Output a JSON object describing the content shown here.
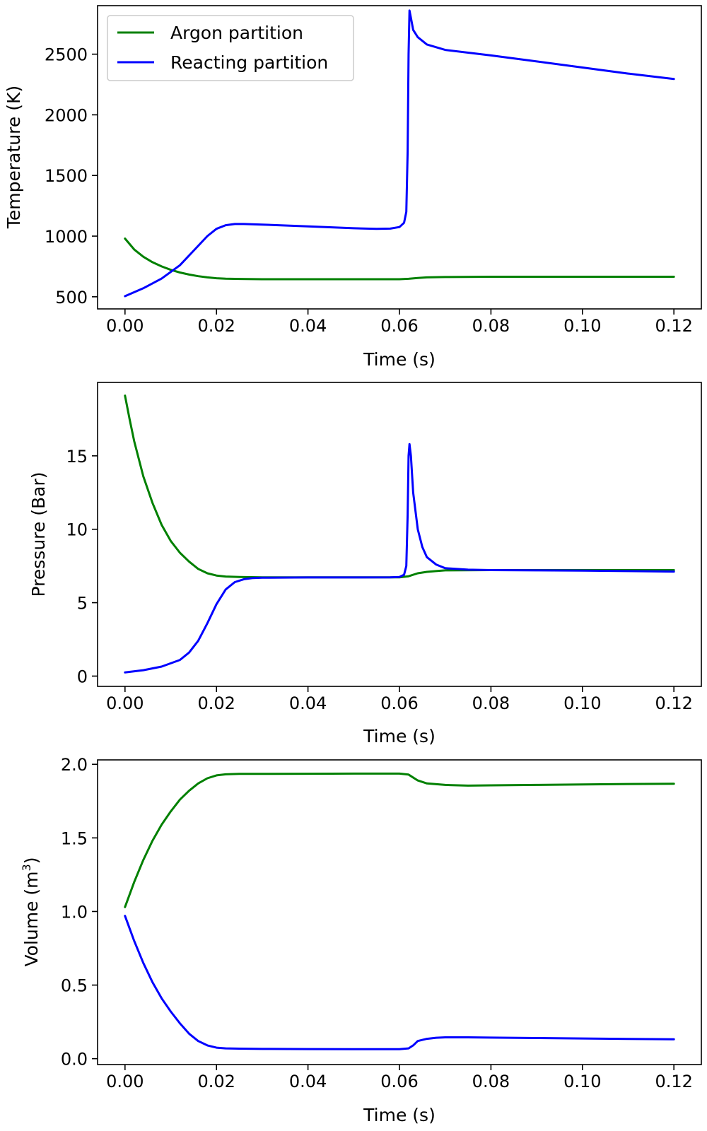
{
  "chart_data": [
    {
      "type": "line",
      "title": "",
      "xlabel": "Time (s)",
      "ylabel": "Temperature (K)",
      "ylabel_sup": "",
      "xlim": [
        -0.006,
        0.126
      ],
      "ylim": [
        400,
        2900
      ],
      "xticks": [
        0.0,
        0.02,
        0.04,
        0.06,
        0.08,
        0.1,
        0.12
      ],
      "xtick_labels": [
        "0.00",
        "0.02",
        "0.04",
        "0.06",
        "0.08",
        "0.10",
        "0.12"
      ],
      "yticks": [
        500,
        1000,
        1500,
        2000,
        2500
      ],
      "ytick_labels": [
        "500",
        "1000",
        "1500",
        "2000",
        "2500"
      ],
      "legend": {
        "position": "top-left",
        "entries": [
          {
            "name": "Argon partition",
            "color": "#008000"
          },
          {
            "name": "Reacting partition",
            "color": "#0000ff"
          }
        ]
      },
      "series": [
        {
          "name": "Argon partition",
          "color": "#008000",
          "x": [
            0.0,
            0.002,
            0.004,
            0.006,
            0.008,
            0.01,
            0.012,
            0.014,
            0.016,
            0.018,
            0.02,
            0.022,
            0.025,
            0.03,
            0.04,
            0.05,
            0.06,
            0.062,
            0.064,
            0.066,
            0.07,
            0.08,
            0.09,
            0.1,
            0.11,
            0.12
          ],
          "y": [
            980,
            890,
            830,
            785,
            750,
            722,
            700,
            683,
            670,
            660,
            653,
            649,
            647,
            645,
            645,
            645,
            645,
            648,
            655,
            660,
            663,
            665,
            665,
            665,
            665,
            665
          ]
        },
        {
          "name": "Reacting partition",
          "color": "#0000ff",
          "x": [
            0.0,
            0.004,
            0.008,
            0.012,
            0.015,
            0.018,
            0.02,
            0.022,
            0.024,
            0.026,
            0.03,
            0.04,
            0.05,
            0.055,
            0.058,
            0.06,
            0.061,
            0.0615,
            0.0618,
            0.062,
            0.0622,
            0.0625,
            0.063,
            0.064,
            0.066,
            0.07,
            0.08,
            0.09,
            0.1,
            0.11,
            0.12
          ],
          "y": [
            505,
            570,
            650,
            760,
            880,
            1000,
            1060,
            1090,
            1100,
            1100,
            1095,
            1080,
            1065,
            1060,
            1062,
            1075,
            1110,
            1200,
            1700,
            2500,
            2860,
            2800,
            2700,
            2640,
            2580,
            2535,
            2490,
            2440,
            2390,
            2340,
            2295
          ]
        }
      ]
    },
    {
      "type": "line",
      "title": "",
      "xlabel": "Time (s)",
      "ylabel": "Pressure (Bar)",
      "ylabel_sup": "",
      "xlim": [
        -0.006,
        0.126
      ],
      "ylim": [
        -0.7,
        20
      ],
      "xticks": [
        0.0,
        0.02,
        0.04,
        0.06,
        0.08,
        0.1,
        0.12
      ],
      "xtick_labels": [
        "0.00",
        "0.02",
        "0.04",
        "0.06",
        "0.08",
        "0.10",
        "0.12"
      ],
      "yticks": [
        0,
        5,
        10,
        15
      ],
      "ytick_labels": [
        "0",
        "5",
        "10",
        "15"
      ],
      "series": [
        {
          "name": "Argon partition",
          "color": "#008000",
          "x": [
            0.0,
            0.001,
            0.002,
            0.004,
            0.006,
            0.008,
            0.01,
            0.012,
            0.014,
            0.016,
            0.018,
            0.02,
            0.022,
            0.025,
            0.03,
            0.04,
            0.05,
            0.06,
            0.062,
            0.064,
            0.066,
            0.068,
            0.07,
            0.08,
            0.09,
            0.1,
            0.11,
            0.12
          ],
          "y": [
            19.1,
            17.5,
            16.0,
            13.6,
            11.8,
            10.3,
            9.2,
            8.4,
            7.8,
            7.3,
            7.0,
            6.85,
            6.78,
            6.75,
            6.73,
            6.73,
            6.73,
            6.73,
            6.8,
            7.0,
            7.1,
            7.15,
            7.2,
            7.22,
            7.22,
            7.22,
            7.22,
            7.22
          ]
        },
        {
          "name": "Reacting partition",
          "color": "#0000ff",
          "x": [
            0.0,
            0.004,
            0.008,
            0.012,
            0.014,
            0.016,
            0.018,
            0.02,
            0.022,
            0.024,
            0.026,
            0.028,
            0.03,
            0.04,
            0.05,
            0.058,
            0.06,
            0.061,
            0.0615,
            0.0618,
            0.062,
            0.0622,
            0.0625,
            0.063,
            0.064,
            0.065,
            0.066,
            0.068,
            0.07,
            0.075,
            0.08,
            0.09,
            0.1,
            0.11,
            0.12
          ],
          "y": [
            0.25,
            0.4,
            0.65,
            1.1,
            1.6,
            2.4,
            3.6,
            4.9,
            5.9,
            6.4,
            6.6,
            6.68,
            6.7,
            6.72,
            6.72,
            6.73,
            6.75,
            6.9,
            7.5,
            11.0,
            15.0,
            15.8,
            15.0,
            12.5,
            10.0,
            8.8,
            8.1,
            7.6,
            7.35,
            7.25,
            7.22,
            7.2,
            7.18,
            7.15,
            7.12
          ]
        }
      ]
    },
    {
      "type": "line",
      "title": "",
      "xlabel": "Time (s)",
      "ylabel": "Volume (m",
      "ylabel_sup": "3",
      "ylabel_end": ")",
      "xlim": [
        -0.006,
        0.126
      ],
      "ylim": [
        -0.04,
        2.03
      ],
      "xticks": [
        0.0,
        0.02,
        0.04,
        0.06,
        0.08,
        0.1,
        0.12
      ],
      "xtick_labels": [
        "0.00",
        "0.02",
        "0.04",
        "0.06",
        "0.08",
        "0.10",
        "0.12"
      ],
      "yticks": [
        0.0,
        0.5,
        1.0,
        1.5,
        2.0
      ],
      "ytick_labels": [
        "0.0",
        "0.5",
        "1.0",
        "1.5",
        "2.0"
      ],
      "series": [
        {
          "name": "Argon partition",
          "color": "#008000",
          "x": [
            0.0,
            0.002,
            0.004,
            0.006,
            0.008,
            0.01,
            0.012,
            0.014,
            0.016,
            0.018,
            0.02,
            0.022,
            0.025,
            0.03,
            0.04,
            0.05,
            0.06,
            0.062,
            0.064,
            0.066,
            0.07,
            0.075,
            0.08,
            0.09,
            0.1,
            0.11,
            0.12
          ],
          "y": [
            1.03,
            1.2,
            1.35,
            1.48,
            1.59,
            1.68,
            1.76,
            1.82,
            1.87,
            1.905,
            1.925,
            1.932,
            1.935,
            1.935,
            1.936,
            1.937,
            1.937,
            1.93,
            1.89,
            1.87,
            1.86,
            1.855,
            1.857,
            1.86,
            1.863,
            1.866,
            1.868
          ]
        },
        {
          "name": "Reacting partition",
          "color": "#0000ff",
          "x": [
            0.0,
            0.002,
            0.004,
            0.006,
            0.008,
            0.01,
            0.012,
            0.014,
            0.016,
            0.018,
            0.02,
            0.022,
            0.025,
            0.03,
            0.04,
            0.05,
            0.06,
            0.062,
            0.063,
            0.064,
            0.066,
            0.068,
            0.07,
            0.075,
            0.08,
            0.09,
            0.1,
            0.11,
            0.12
          ],
          "y": [
            0.97,
            0.8,
            0.65,
            0.52,
            0.41,
            0.32,
            0.24,
            0.17,
            0.12,
            0.09,
            0.075,
            0.07,
            0.068,
            0.066,
            0.065,
            0.064,
            0.064,
            0.07,
            0.09,
            0.12,
            0.135,
            0.142,
            0.145,
            0.145,
            0.143,
            0.14,
            0.137,
            0.134,
            0.132
          ]
        }
      ]
    }
  ]
}
